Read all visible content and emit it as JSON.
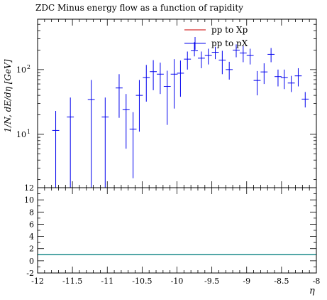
{
  "chart_data": {
    "type": "scatter",
    "title": "ZDC Minus energy flow as a function of rapidity",
    "xlabel": "η",
    "ylabel": "1/N, dE/dη [GeV]",
    "xlim": [
      -12,
      -8
    ],
    "ylim_main": [
      1.5,
      600
    ],
    "yscale_main": "log",
    "ylim_ratio": [
      -2,
      12
    ],
    "x_ticks": [
      {
        "v": -12,
        "label": "-12"
      },
      {
        "v": -11.5,
        "label": "-11.5"
      },
      {
        "v": -11,
        "label": "-11"
      },
      {
        "v": -10.5,
        "label": "-10.5"
      },
      {
        "v": -10,
        "label": "-10"
      },
      {
        "v": -9.5,
        "label": "-9.5"
      },
      {
        "v": -9,
        "label": "-9"
      },
      {
        "v": -8.5,
        "label": "-8.5"
      },
      {
        "v": -8,
        "label": "-8"
      }
    ],
    "y_ticks_main": [
      {
        "v": 10,
        "label": "10",
        "sup": "1"
      },
      {
        "v": 100,
        "label": "10",
        "sup": "2"
      }
    ],
    "y_ticks_ratio": [
      "-2",
      "0",
      "2",
      "4",
      "6",
      "8",
      "10",
      "12"
    ],
    "legend_position": "top-right",
    "series": [
      {
        "name": "pp to Xp",
        "color": "#cc0000",
        "points": []
      },
      {
        "name": "pp to pX",
        "color": "#0000ee",
        "points": [
          {
            "x": -11.74,
            "xerr": 0.05,
            "y": 11.5,
            "ylo": 1.5,
            "yhi": 23
          },
          {
            "x": -11.53,
            "xerr": 0.05,
            "y": 18.5,
            "ylo": 1.5,
            "yhi": 37
          },
          {
            "x": -11.23,
            "xerr": 0.05,
            "y": 34.5,
            "ylo": 1.5,
            "yhi": 69
          },
          {
            "x": -11.03,
            "xerr": 0.05,
            "y": 18.5,
            "ylo": 1.5,
            "yhi": 37
          },
          {
            "x": -10.83,
            "xerr": 0.05,
            "y": 52,
            "ylo": 18,
            "yhi": 85
          },
          {
            "x": -10.73,
            "xerr": 0.05,
            "y": 24,
            "ylo": 6,
            "yhi": 42
          },
          {
            "x": -10.63,
            "xerr": 0.05,
            "y": 12,
            "ylo": 2.1,
            "yhi": 22
          },
          {
            "x": -10.54,
            "xerr": 0.05,
            "y": 40,
            "ylo": 11,
            "yhi": 69
          },
          {
            "x": -10.44,
            "xerr": 0.05,
            "y": 75,
            "ylo": 32,
            "yhi": 118
          },
          {
            "x": -10.34,
            "xerr": 0.05,
            "y": 93,
            "ylo": 48,
            "yhi": 140
          },
          {
            "x": -10.24,
            "xerr": 0.05,
            "y": 85,
            "ylo": 42,
            "yhi": 128
          },
          {
            "x": -10.14,
            "xerr": 0.05,
            "y": 55,
            "ylo": 14,
            "yhi": 96
          },
          {
            "x": -10.04,
            "xerr": 0.05,
            "y": 85,
            "ylo": 25,
            "yhi": 145
          },
          {
            "x": -9.95,
            "xerr": 0.05,
            "y": 88,
            "ylo": 38,
            "yhi": 138
          },
          {
            "x": -9.85,
            "xerr": 0.05,
            "y": 145,
            "ylo": 100,
            "yhi": 190
          },
          {
            "x": -9.75,
            "xerr": 0.05,
            "y": 195,
            "ylo": 160,
            "yhi": 265
          },
          {
            "x": -9.65,
            "xerr": 0.05,
            "y": 150,
            "ylo": 105,
            "yhi": 190
          },
          {
            "x": -9.55,
            "xerr": 0.05,
            "y": 165,
            "ylo": 120,
            "yhi": 210
          },
          {
            "x": -9.45,
            "xerr": 0.05,
            "y": 185,
            "ylo": 145,
            "yhi": 225
          },
          {
            "x": -9.35,
            "xerr": 0.05,
            "y": 140,
            "ylo": 85,
            "yhi": 195
          },
          {
            "x": -9.25,
            "xerr": 0.05,
            "y": 100,
            "ylo": 70,
            "yhi": 132
          },
          {
            "x": -9.15,
            "xerr": 0.05,
            "y": 200,
            "ylo": 155,
            "yhi": 245
          },
          {
            "x": -9.05,
            "xerr": 0.05,
            "y": 180,
            "ylo": 130,
            "yhi": 230
          },
          {
            "x": -8.95,
            "xerr": 0.05,
            "y": 165,
            "ylo": 120,
            "yhi": 210
          },
          {
            "x": -8.85,
            "xerr": 0.05,
            "y": 68,
            "ylo": 40,
            "yhi": 95
          },
          {
            "x": -8.75,
            "xerr": 0.05,
            "y": 92,
            "ylo": 60,
            "yhi": 125
          },
          {
            "x": -8.65,
            "xerr": 0.05,
            "y": 172,
            "ylo": 130,
            "yhi": 215
          },
          {
            "x": -8.55,
            "xerr": 0.05,
            "y": 78,
            "ylo": 55,
            "yhi": 100
          },
          {
            "x": -8.46,
            "xerr": 0.05,
            "y": 75,
            "ylo": 50,
            "yhi": 100
          },
          {
            "x": -8.36,
            "xerr": 0.05,
            "y": 62,
            "ylo": 45,
            "yhi": 80
          },
          {
            "x": -8.26,
            "xerr": 0.05,
            "y": 80,
            "ylo": 55,
            "yhi": 105
          },
          {
            "x": -8.16,
            "xerr": 0.05,
            "y": 35,
            "ylo": 26,
            "yhi": 45
          }
        ]
      }
    ],
    "ratio_reference": {
      "y": 1,
      "color": "#1a8a8a"
    }
  }
}
